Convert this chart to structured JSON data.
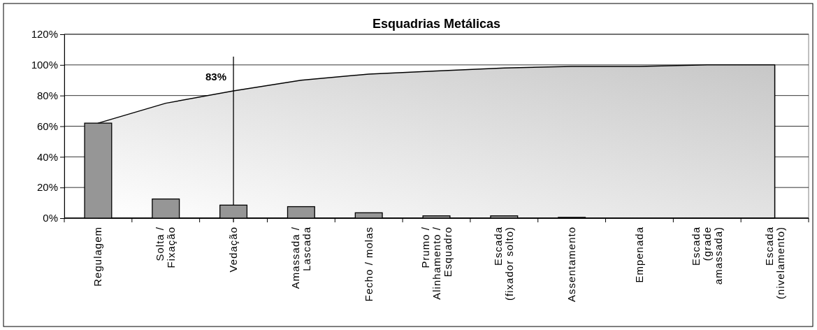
{
  "chart_data": {
    "type": "bar",
    "title": "Esquadrias Metálicas",
    "categories": [
      "Regulagem",
      "Solta /\nFixação",
      "Vedação",
      "Amassada /\nLascada",
      "Fecho / molas",
      "Prumo /\nAlinhamento /\nEsquadro",
      "Escada\n(fixador solto)",
      "Assentamento",
      "Empenada",
      "Escada\n(grade\namassada)",
      "Escada\n(nivelamento)"
    ],
    "series": [
      {
        "type": "area",
        "color": "#000000",
        "values": [
          62,
          75,
          83,
          90,
          94,
          96,
          98,
          99,
          99,
          100,
          100
        ]
      },
      {
        "color": "#969696",
        "values": [
          62,
          12.5,
          8.5,
          7.5,
          3.5,
          1.5,
          1.5,
          0.5,
          0,
          0,
          0
        ]
      }
    ],
    "ylim": [
      0,
      120
    ],
    "yticks": [
      {
        "value": 0,
        "label": "0%"
      },
      {
        "value": 20,
        "label": "20%"
      },
      {
        "value": 40,
        "label": "40%"
      },
      {
        "value": 60,
        "label": "60%"
      },
      {
        "value": 80,
        "label": "80%"
      },
      {
        "value": 100,
        "label": "100%"
      },
      {
        "value": 120,
        "label": "120%"
      }
    ],
    "grid": "y",
    "ref_lines": [
      {
        "axis": "x",
        "value": "Vedação",
        "label": "83%"
      }
    ]
  }
}
